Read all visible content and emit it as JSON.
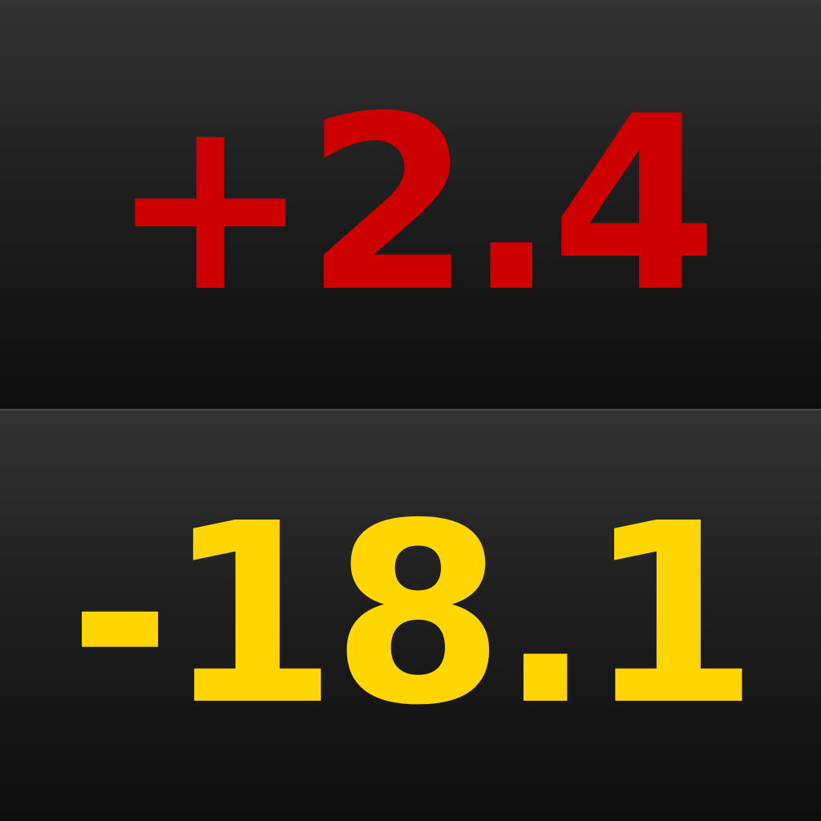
{
  "readouts": {
    "top": {
      "value": "+2.4",
      "color": "#cc0000"
    },
    "bottom": {
      "value": "-18.1",
      "color": "#ffd600"
    }
  }
}
